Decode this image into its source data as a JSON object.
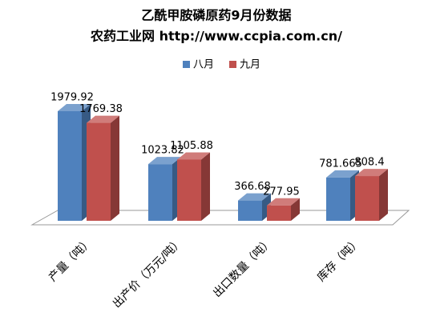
{
  "chart_data": {
    "type": "bar3d",
    "title": "乙酰甲胺磷原药9月份数据",
    "subtitle": "农药工业网 http://www.ccpia.com.cn/",
    "categories": [
      "产量（吨）",
      "出产价（万元/吨）",
      "出口数量（吨）",
      "库存（吨）"
    ],
    "series": [
      {
        "name": "八月",
        "color": "#4f81bd",
        "values": [
          1979.92,
          1023.82,
          366.68,
          781.665
        ]
      },
      {
        "name": "九月",
        "color": "#c0504d",
        "values": [
          1769.38,
          1105.88,
          277.95,
          808.4
        ]
      }
    ],
    "legend": "top"
  }
}
